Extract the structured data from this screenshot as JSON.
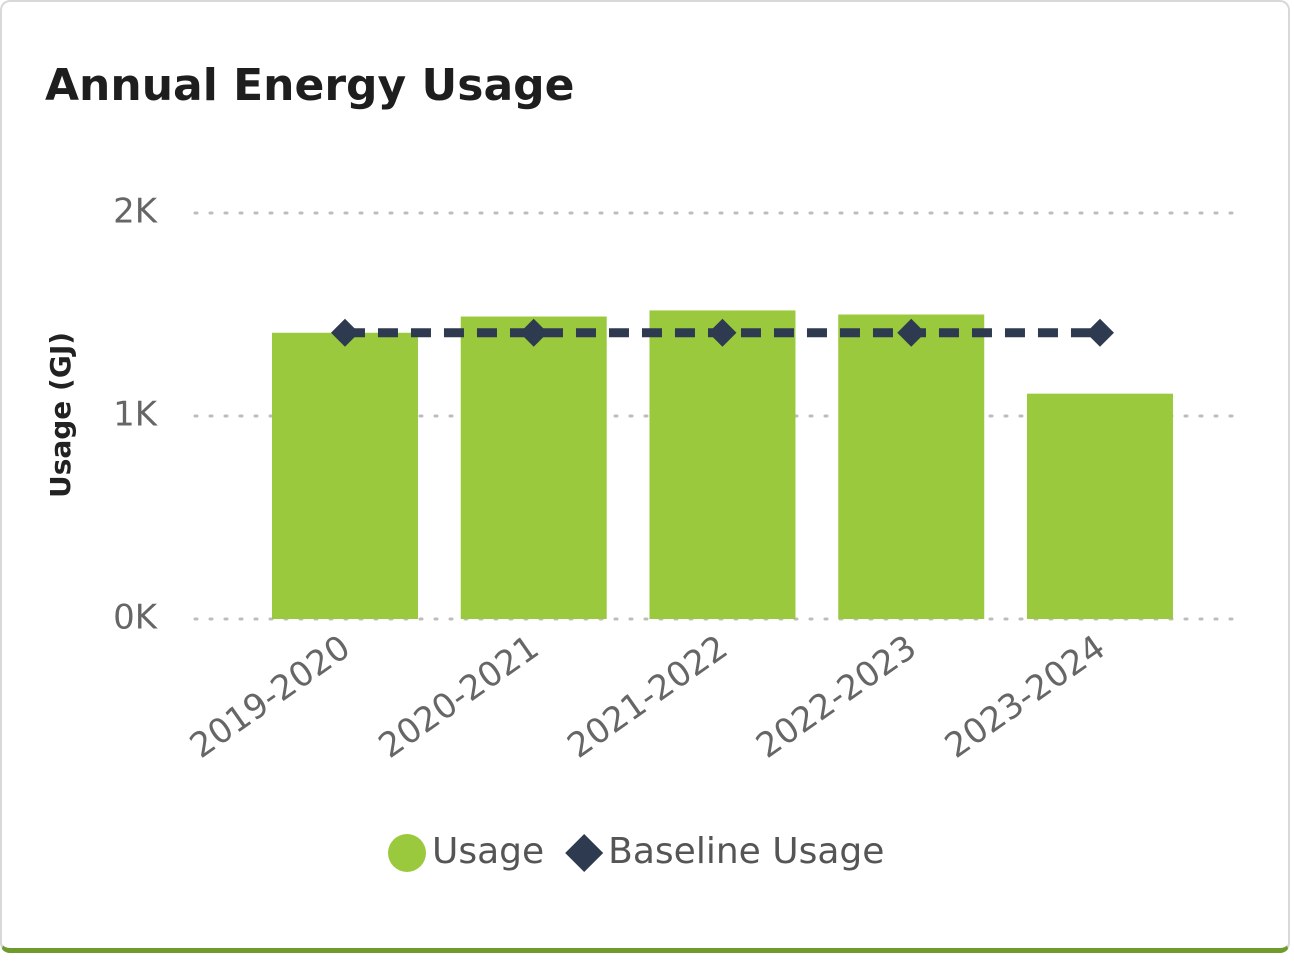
{
  "chart_data": {
    "type": "bar",
    "title": "Annual Energy Usage",
    "y_label": "Usage (GJ)",
    "categories": [
      "2019-2020",
      "2020-2021",
      "2021-2022",
      "2022-2023",
      "2023-2024"
    ],
    "series": [
      {
        "name": "Usage",
        "type": "bar",
        "color": "#9bc93e",
        "values": [
          1410,
          1490,
          1520,
          1500,
          1110
        ]
      },
      {
        "name": "Baseline Usage",
        "type": "line",
        "color": "#2d3a4f",
        "values": [
          1410,
          1410,
          1410,
          1410,
          1410
        ]
      }
    ],
    "ylim": [
      0,
      2000
    ],
    "yticks": [
      {
        "value": 0,
        "label": "0K"
      },
      {
        "value": 1000,
        "label": "1K"
      },
      {
        "value": 2000,
        "label": "2K"
      }
    ],
    "grid": true,
    "legend": "bottom"
  }
}
